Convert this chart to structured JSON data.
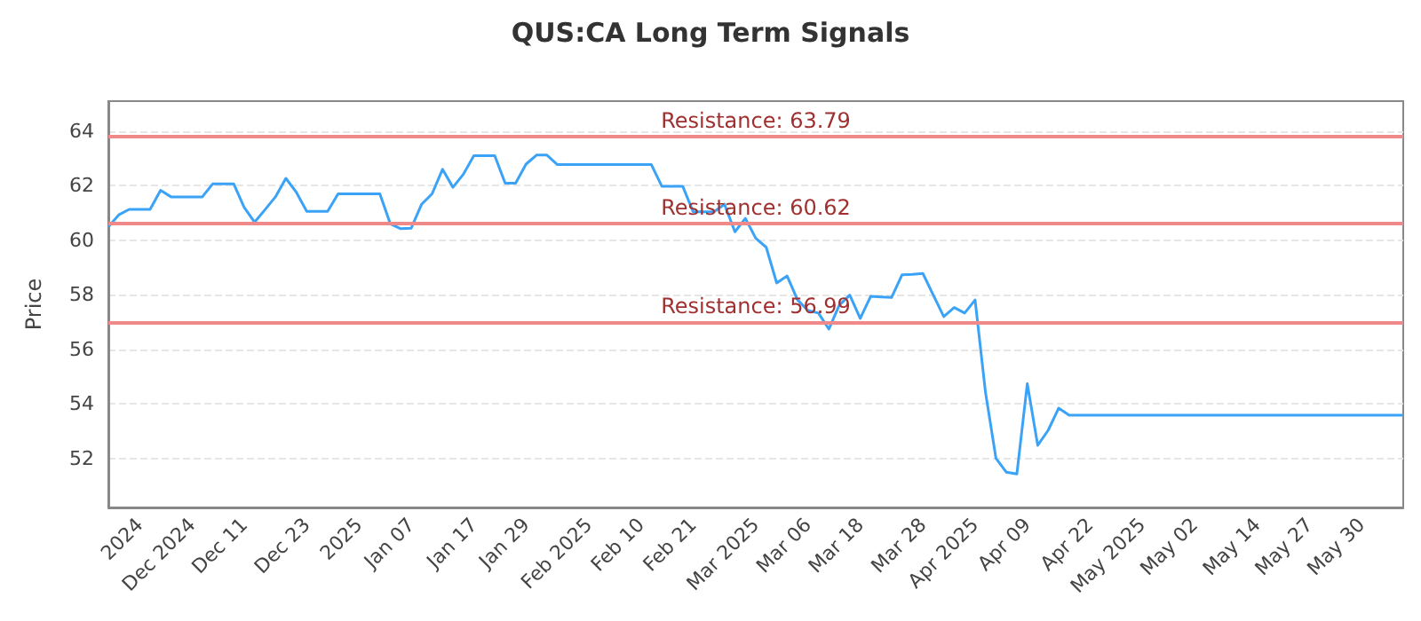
{
  "chart_data": {
    "type": "line",
    "title": "QUS:CA Long Term Signals",
    "ylabel": "Price",
    "categories": [
      null,
      null,
      null,
      "2024",
      null,
      null,
      null,
      null,
      "Dec 2024",
      null,
      null,
      null,
      null,
      "Dec 11",
      null,
      null,
      null,
      null,
      null,
      "Dec 23",
      null,
      null,
      null,
      null,
      "2025",
      null,
      null,
      null,
      null,
      "Jan 07",
      null,
      null,
      null,
      null,
      null,
      "Jan 17",
      null,
      null,
      null,
      null,
      "Jan 29",
      null,
      null,
      null,
      null,
      null,
      "Feb 2025",
      null,
      null,
      null,
      null,
      "Feb 10",
      null,
      null,
      null,
      null,
      "Feb 21",
      null,
      null,
      null,
      null,
      null,
      "Mar 2025",
      null,
      null,
      null,
      null,
      "Mar 06",
      null,
      null,
      null,
      null,
      "Mar 18",
      null,
      null,
      null,
      null,
      null,
      "Mar 28",
      null,
      null,
      null,
      null,
      "Apr 2025",
      null,
      null,
      null,
      null,
      "Apr 09",
      null,
      null,
      null,
      null,
      null,
      "Apr 22",
      null,
      null,
      null,
      null,
      "May 2025",
      null,
      null,
      null,
      null,
      "May 02",
      null,
      null,
      null,
      null,
      null,
      "May 14",
      null,
      null,
      null,
      null,
      "May 27",
      null,
      null,
      null,
      null,
      "May 30",
      null,
      null,
      null,
      null
    ],
    "series": [
      {
        "color": "#3ba3f7",
        "values": [
          60.49,
          60.93,
          61.13,
          61.13,
          61.13,
          61.83,
          61.59,
          61.59,
          61.59,
          61.59,
          62.07,
          62.07,
          62.07,
          61.21,
          60.66,
          61.12,
          61.59,
          62.27,
          61.76,
          61.06,
          61.06,
          61.06,
          61.7,
          61.7,
          61.7,
          61.7,
          61.7,
          60.6,
          60.42,
          60.44,
          61.32,
          61.7,
          62.6,
          61.94,
          62.42,
          63.1,
          63.1,
          63.1,
          62.09,
          62.09,
          62.79,
          63.12,
          63.12,
          62.77,
          62.77,
          62.77,
          62.77,
          62.77,
          62.77,
          62.77,
          62.77,
          62.77,
          62.77,
          61.98,
          61.98,
          61.98,
          61.04,
          61.04,
          61.04,
          61.32,
          60.31,
          60.8,
          60.07,
          59.74,
          58.43,
          58.69,
          57.81,
          57.42,
          57.33,
          56.74,
          57.62,
          57.99,
          57.13,
          57.94,
          57.92,
          57.9,
          58.73,
          58.75,
          58.78,
          57.99,
          57.2,
          57.53,
          57.33,
          57.81,
          54.41,
          52.0,
          51.49,
          51.43,
          54.74,
          52.48,
          53.03,
          53.84,
          53.58,
          53.58,
          53.58,
          53.58,
          53.58,
          53.58,
          53.58,
          53.58,
          53.58,
          53.58,
          53.58,
          53.58,
          53.58,
          53.58,
          53.58,
          53.58,
          53.58,
          53.58,
          53.58,
          53.58,
          53.58,
          53.58,
          53.58,
          53.58,
          53.58,
          53.58,
          53.58,
          53.58,
          53.58,
          53.58,
          53.58,
          53.58,
          53.58
        ]
      }
    ],
    "ylim": [
      50.2,
      65.1
    ],
    "yticks": [
      52,
      54,
      56,
      58,
      60,
      62,
      64
    ],
    "grid": "y",
    "marker": "none",
    "line_style": "solid",
    "ref_lines": [
      {
        "axis": "y",
        "value": 63.79,
        "label": "Resistance: 63.79",
        "color": "#f08a8a"
      },
      {
        "axis": "y",
        "value": 60.62,
        "label": "Resistance: 60.62",
        "color": "#f08a8a"
      },
      {
        "axis": "y",
        "value": 56.99,
        "label": "Resistance: 56.99",
        "color": "#f08a8a"
      }
    ]
  }
}
